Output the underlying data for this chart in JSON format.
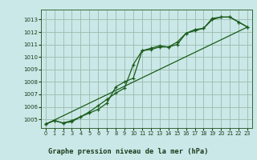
{
  "background_color": "#cbe8e8",
  "grid_color": "#99bbaa",
  "line_color": "#1a5c1a",
  "title": "Graphe pression niveau de la mer (hPa)",
  "xlim": [
    -0.5,
    23.5
  ],
  "ylim": [
    1004.3,
    1013.8
  ],
  "yticks": [
    1005,
    1006,
    1007,
    1008,
    1009,
    1010,
    1011,
    1012,
    1013
  ],
  "xticks": [
    0,
    1,
    2,
    3,
    4,
    5,
    6,
    7,
    8,
    9,
    10,
    11,
    12,
    13,
    14,
    15,
    16,
    17,
    18,
    19,
    20,
    21,
    22,
    23
  ],
  "line1_x": [
    0,
    1,
    2,
    3,
    4,
    5,
    6,
    7,
    8,
    9,
    10,
    11,
    12,
    13,
    14,
    15,
    16,
    17,
    18,
    19,
    20,
    21,
    22,
    23
  ],
  "line1_y": [
    1004.6,
    1004.9,
    1004.7,
    1004.8,
    1005.2,
    1005.5,
    1005.8,
    1006.3,
    1007.6,
    1008.0,
    1008.3,
    1010.5,
    1010.6,
    1010.8,
    1010.8,
    1011.0,
    1011.9,
    1012.1,
    1012.3,
    1013.0,
    1013.2,
    1013.2,
    1012.8,
    1012.4
  ],
  "line2_x": [
    0,
    1,
    2,
    3,
    4,
    5,
    6,
    7,
    8,
    9,
    10,
    11,
    12,
    13,
    14,
    15,
    16,
    17,
    18,
    19,
    20,
    21,
    22,
    23
  ],
  "line2_y": [
    1004.6,
    1004.9,
    1004.7,
    1004.9,
    1005.2,
    1005.6,
    1006.1,
    1006.6,
    1007.1,
    1007.5,
    1009.4,
    1010.5,
    1010.7,
    1010.9,
    1010.8,
    1011.2,
    1011.9,
    1012.2,
    1012.3,
    1013.1,
    1013.2,
    1013.2,
    1012.8,
    1012.4
  ],
  "line3_x": [
    0,
    23
  ],
  "line3_y": [
    1004.6,
    1012.4
  ],
  "figsize": [
    3.2,
    2.0
  ],
  "dpi": 100
}
